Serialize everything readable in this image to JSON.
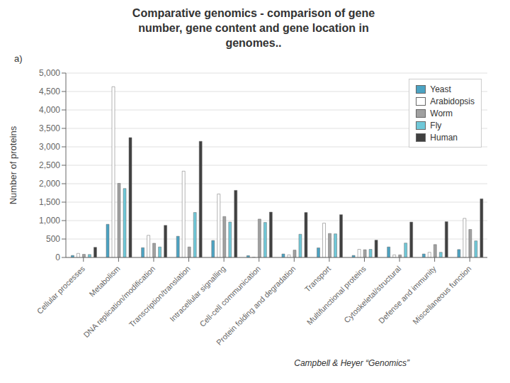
{
  "chart_data": {
    "type": "bar",
    "title": "Comparative genomics - comparison of gene\nnumber, gene content and gene location in\ngenomes..",
    "ylabel": "Number of proteins",
    "categories": [
      "Cellular processes",
      "Metabolism",
      "DNA replication/modification",
      "Transcription/translation",
      "Intracellular signalling",
      "Cell-cell communication",
      "Protein folding and degradation",
      "Transport",
      "Multifunctional proteins",
      "Cytoskeletal/structural",
      "Defense and immunity",
      "Miscellaneous function"
    ],
    "series": [
      {
        "name": "Yeast",
        "color": "#4BA3C3",
        "values": [
          55,
          900,
          265,
          575,
          460,
          50,
          95,
          260,
          55,
          285,
          95,
          215
        ]
      },
      {
        "name": "Arabidopsis",
        "color": "#FFFFFF",
        "values": [
          110,
          4630,
          600,
          2340,
          1720,
          5,
          70,
          930,
          220,
          70,
          140,
          1060
        ]
      },
      {
        "name": "Worm",
        "color": "#A0A0A0",
        "values": [
          85,
          2010,
          385,
          285,
          1110,
          1040,
          200,
          650,
          210,
          70,
          350,
          760
        ]
      },
      {
        "name": "Fly",
        "color": "#70C8D8",
        "values": [
          80,
          1870,
          285,
          1220,
          960,
          950,
          630,
          640,
          220,
          390,
          140,
          450
        ]
      },
      {
        "name": "Human",
        "color": "#404040",
        "values": [
          275,
          3250,
          870,
          3150,
          1820,
          1230,
          1220,
          1160,
          470,
          960,
          970,
          1590
        ]
      }
    ],
    "ylim": [
      0,
      5000
    ],
    "yticks": [
      0,
      500,
      {
        "value": 1000,
        "label": "1,000"
      },
      {
        "value": 1500,
        "label": "1,500"
      },
      {
        "value": 2000,
        "label": "2,000"
      },
      {
        "value": 2500,
        "label": "2,500"
      },
      {
        "value": 3000,
        "label": "3,000"
      },
      {
        "value": 3500,
        "label": "3,500"
      },
      {
        "value": 4000,
        "label": "4,000"
      },
      {
        "value": 4500,
        "label": "4,500"
      },
      {
        "value": 5000,
        "label": "5,000"
      }
    ],
    "grid": true,
    "legend": "upper right",
    "annotations": [
      "a)",
      "Campbell & Heyer “Genomics”"
    ]
  }
}
